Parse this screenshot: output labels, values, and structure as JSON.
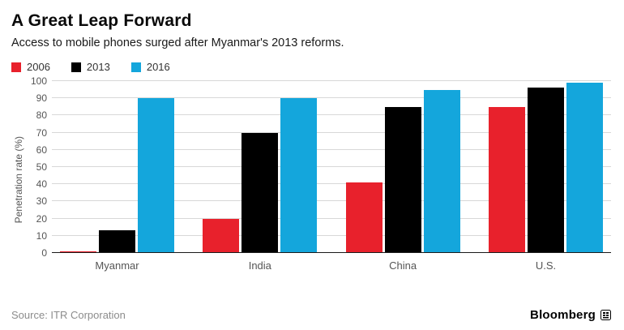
{
  "header": {
    "title": "A Great Leap Forward",
    "subtitle": "Access to mobile phones surged after Myanmar's 2013 reforms."
  },
  "legend": [
    {
      "label": "2006",
      "color": "#e8212c"
    },
    {
      "label": "2013",
      "color": "#000000"
    },
    {
      "label": "2016",
      "color": "#14a6dc"
    }
  ],
  "chart_data": {
    "type": "bar",
    "categories": [
      "Myanmar",
      "India",
      "China",
      "U.S."
    ],
    "series": [
      {
        "name": "2006",
        "color": "#e8212c",
        "values": [
          1,
          20,
          41,
          85
        ]
      },
      {
        "name": "2013",
        "color": "#000000",
        "values": [
          13,
          70,
          85,
          96
        ]
      },
      {
        "name": "2016",
        "color": "#14a6dc",
        "values": [
          90,
          90,
          95,
          99
        ]
      }
    ],
    "title": "A Great Leap Forward",
    "xlabel": "",
    "ylabel": "Penetration rate (%)",
    "ylim": [
      0,
      100
    ],
    "yticks": [
      0,
      10,
      20,
      30,
      40,
      50,
      60,
      70,
      80,
      90,
      100
    ],
    "grid": true,
    "legend_position": "top"
  },
  "footer": {
    "source": "Source: ITR Corporation",
    "brand": "Bloomberg"
  }
}
